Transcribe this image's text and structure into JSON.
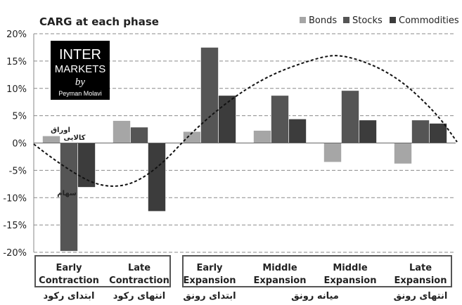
{
  "chart_data": {
    "type": "bar",
    "title": "CARG at each phase",
    "categories": [
      [
        "Early",
        "Contraction"
      ],
      [
        "Late",
        "Contraction"
      ],
      [
        "Early",
        "Expansion"
      ],
      [
        "Middle",
        "Expansion"
      ],
      [
        "Middle",
        "Expansion"
      ],
      [
        "Late",
        "Expansion"
      ]
    ],
    "series": [
      {
        "name": "Bonds",
        "color": "#a6a6a6",
        "values": [
          1.3,
          4.1,
          2.1,
          2.3,
          -3.5,
          -3.8
        ]
      },
      {
        "name": "Stocks",
        "color": "#555555",
        "values": [
          -19.8,
          2.9,
          17.5,
          8.7,
          9.6,
          4.2
        ]
      },
      {
        "name": "Commodities",
        "color": "#3c3c3c",
        "values": [
          -8.1,
          -12.5,
          8.7,
          4.4,
          4.2,
          3.6
        ]
      }
    ],
    "ylim": [
      -20,
      20
    ],
    "yticks": [
      20,
      15,
      10,
      5,
      0,
      -5,
      -10,
      -15,
      -20
    ],
    "ytick_format": "percent",
    "grid": "horizontal-dashed",
    "legend_position": "top-right",
    "trend_curve": {
      "style": "dashed",
      "label": ""
    },
    "bar_annotations": [
      {
        "text": "اوراق",
        "category_index": 0,
        "series": "Bonds"
      },
      {
        "text": "سهام",
        "category_index": 0,
        "series": "Stocks"
      },
      {
        "text": "کالایی",
        "category_index": 0,
        "series": "Commodities"
      }
    ],
    "category_groups": [
      {
        "categories": [
          0,
          1
        ]
      },
      {
        "categories": [
          2,
          3,
          4,
          5
        ]
      }
    ],
    "persian_labels": [
      {
        "text": "ابتدای رکود",
        "category_index": 0
      },
      {
        "text": "انتهای رکود",
        "category_index": 1
      },
      {
        "text": "ابتدای رونق",
        "category_index": 2
      },
      {
        "text": "میانه رونق",
        "category_index": 3.5
      },
      {
        "text": "انتهای رونق",
        "category_index": 5
      }
    ]
  },
  "logo": {
    "lines": [
      "INTER",
      "MARKETS",
      "by",
      "Peyman Molavi"
    ]
  }
}
